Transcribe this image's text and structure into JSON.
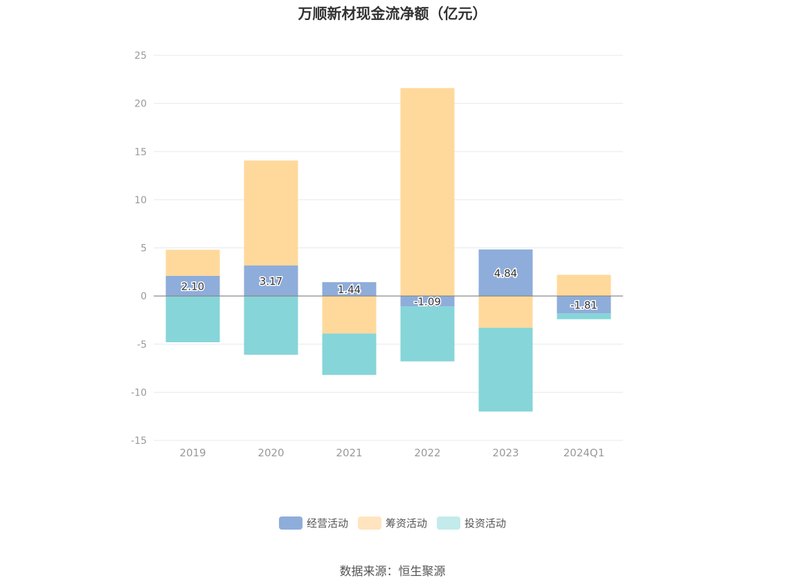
{
  "title": "万顺新材现金流净额（亿元）",
  "source_text": "数据来源：恒生聚源",
  "colors": {
    "operating": "#8fadda",
    "financing": "#ffd99b",
    "investing": "#86d5d9",
    "financing_legend": "#ffe4bf",
    "investing_legend": "#c3ebec",
    "grid": "#e6e8ef",
    "zero_line": "#888888"
  },
  "chart_data": {
    "type": "bar",
    "stacked": true,
    "title": "万顺新材现金流净额（亿元）",
    "categories": [
      "2019",
      "2020",
      "2021",
      "2022",
      "2023",
      "2024Q1"
    ],
    "series": [
      {
        "name": "经营活动",
        "values": [
          2.1,
          3.17,
          1.44,
          -1.09,
          4.84,
          -1.81
        ],
        "labels": [
          "2.10",
          "3.17",
          "1.44",
          "-1.09",
          "4.84",
          "-1.81"
        ]
      },
      {
        "name": "筹资活动",
        "values": [
          2.7,
          10.9,
          -3.9,
          21.6,
          -3.3,
          2.2
        ]
      },
      {
        "name": "投资活动",
        "values": [
          -4.8,
          -6.1,
          -4.3,
          -5.7,
          -8.7,
          -0.6
        ]
      }
    ],
    "ylim": [
      -15,
      25
    ],
    "yticks": [
      -15,
      -10,
      -5,
      0,
      5,
      10,
      15,
      20,
      25
    ],
    "grid": true,
    "legend_position": "bottom"
  }
}
